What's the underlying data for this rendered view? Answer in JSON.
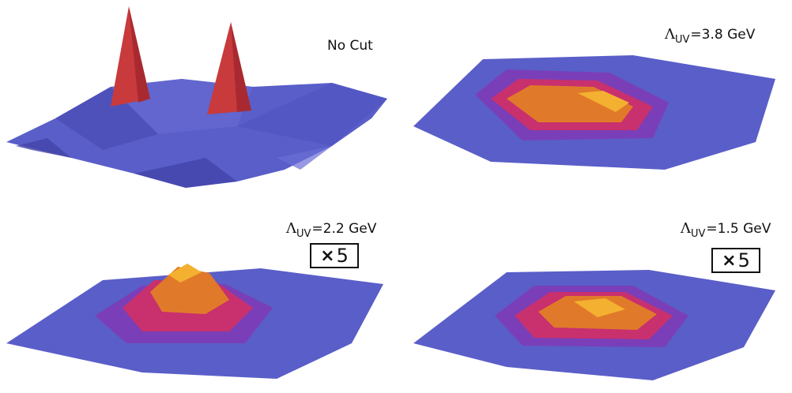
{
  "panels": [
    {
      "label_text": "No Cut",
      "multiplier": ""
    },
    {
      "label_symbol": "Λ",
      "label_sub": "UV",
      "label_value": "=3.8 GeV",
      "multiplier": ""
    },
    {
      "label_symbol": "Λ",
      "label_sub": "UV",
      "label_value": "=2.2 GeV",
      "multiplier_times": "×",
      "multiplier_value": "5"
    },
    {
      "label_symbol": "Λ",
      "label_sub": "UV",
      "label_value": "=1.5 GeV",
      "multiplier_times": "×",
      "multiplier_value": "5"
    }
  ],
  "colors": {
    "base": "#5a5ec8",
    "low": "#7a3fb8",
    "mid": "#c8306e",
    "high": "#e07a2a",
    "peak": "#f4b030"
  }
}
